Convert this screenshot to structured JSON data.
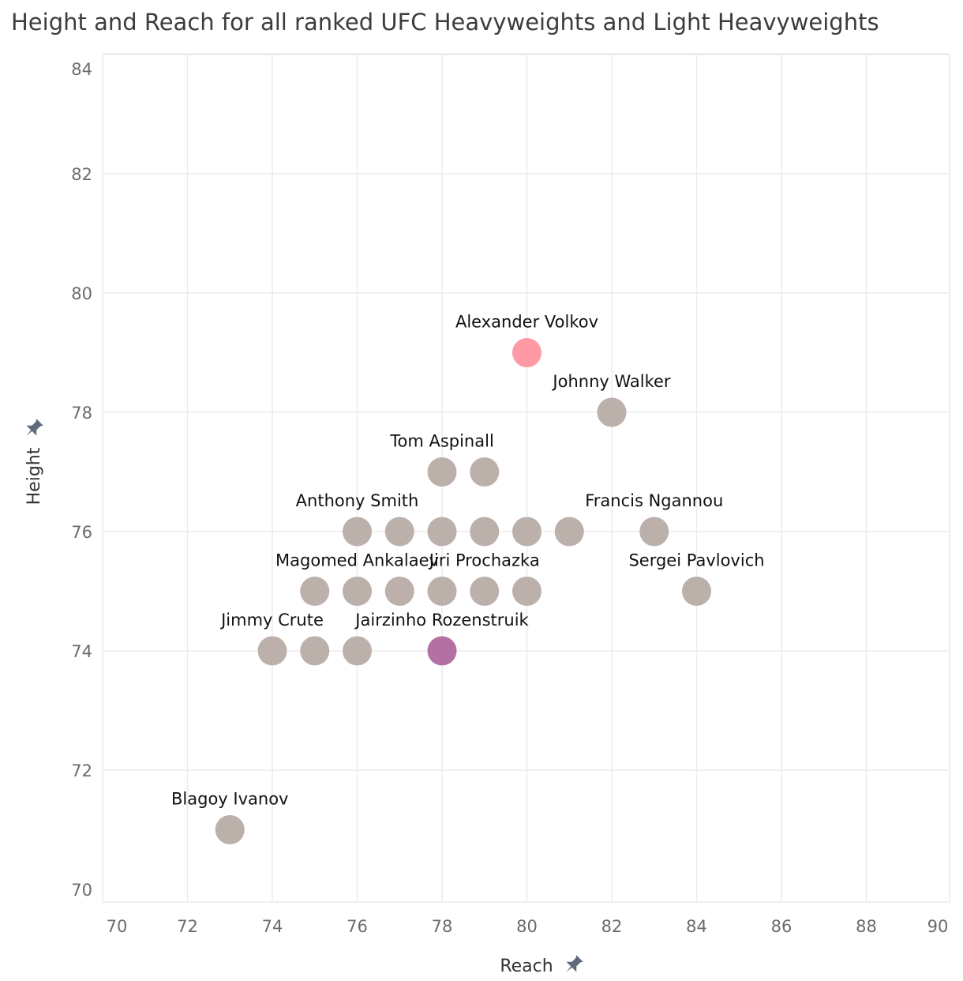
{
  "chart_data": {
    "type": "scatter",
    "title": "Height and Reach for all ranked UFC Heavyweights and Light Heavyweights",
    "xlabel": "Reach",
    "ylabel": "Height",
    "xlim": [
      70,
      90
    ],
    "ylim": [
      70,
      84
    ],
    "x_ticks": [
      70,
      72,
      74,
      76,
      78,
      80,
      82,
      84,
      86,
      88,
      90
    ],
    "y_ticks": [
      70,
      72,
      74,
      76,
      78,
      80,
      82,
      84
    ],
    "grid": true,
    "pin_icon": "pin-icon",
    "colors": {
      "default": "#bcb0ab",
      "highlight_pink": "#ff9aa4",
      "highlight_purple": "#b46fa3"
    },
    "points": [
      {
        "x": 80,
        "y": 79,
        "label": "Alexander Volkov",
        "color": "#ff9aa4"
      },
      {
        "x": 82,
        "y": 78,
        "label": "Johnny Walker"
      },
      {
        "x": 78,
        "y": 77,
        "label": "Tom Aspinall"
      },
      {
        "x": 79,
        "y": 77,
        "label": ""
      },
      {
        "x": 76,
        "y": 76,
        "label": "Anthony Smith"
      },
      {
        "x": 77,
        "y": 76,
        "label": ""
      },
      {
        "x": 78,
        "y": 76,
        "label": ""
      },
      {
        "x": 79,
        "y": 76,
        "label": ""
      },
      {
        "x": 80,
        "y": 76,
        "label": ""
      },
      {
        "x": 81,
        "y": 76,
        "label": ""
      },
      {
        "x": 83,
        "y": 76,
        "label": "Francis Ngannou"
      },
      {
        "x": 75,
        "y": 75,
        "label": ""
      },
      {
        "x": 76,
        "y": 75,
        "label": "Magomed Ankalaev"
      },
      {
        "x": 77,
        "y": 75,
        "label": ""
      },
      {
        "x": 78,
        "y": 75,
        "label": ""
      },
      {
        "x": 79,
        "y": 75,
        "label": "Jiri Prochazka"
      },
      {
        "x": 80,
        "y": 75,
        "label": ""
      },
      {
        "x": 84,
        "y": 75,
        "label": "Sergei Pavlovich"
      },
      {
        "x": 74,
        "y": 74,
        "label": "Jimmy Crute"
      },
      {
        "x": 75,
        "y": 74,
        "label": ""
      },
      {
        "x": 76,
        "y": 74,
        "label": ""
      },
      {
        "x": 78,
        "y": 74,
        "label": "Jairzinho Rozenstruik",
        "color": "#b46fa3"
      },
      {
        "x": 73,
        "y": 71,
        "label": "Blagoy Ivanov"
      }
    ]
  }
}
